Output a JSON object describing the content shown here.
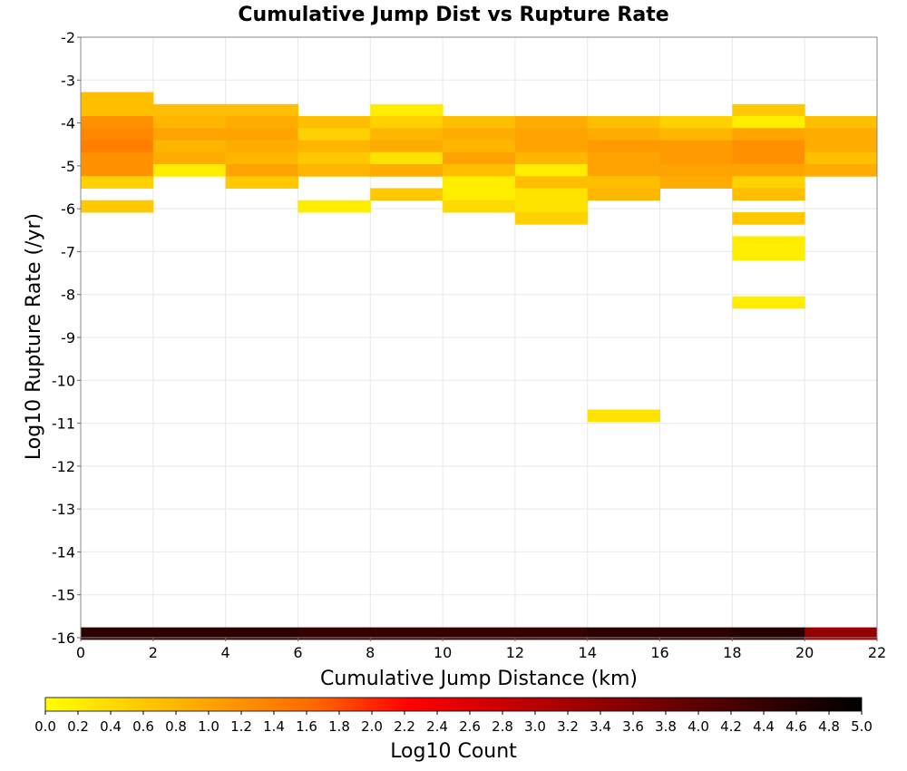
{
  "chart_data": {
    "type": "heatmap",
    "title": "Cumulative Jump Dist vs Rupture Rate",
    "xlabel": "Cumulative Jump Distance (km)",
    "ylabel": "Log10 Rupture Rate (/yr)",
    "xlim": [
      0,
      22
    ],
    "ylim": [
      -16,
      -2
    ],
    "x_ticks": [
      "0",
      "2",
      "4",
      "6",
      "8",
      "10",
      "12",
      "14",
      "16",
      "18",
      "20",
      "22"
    ],
    "y_ticks": [
      "-2",
      "-3",
      "-4",
      "-5",
      "-6",
      "-7",
      "-8",
      "-9",
      "-10",
      "-11",
      "-12",
      "-13",
      "-14",
      "-15",
      "-16"
    ],
    "x_bin_width": 2,
    "y_bin_height": 0.28,
    "grid": true,
    "colorbar": {
      "label": "Log10 Count",
      "min": 0,
      "max": 5,
      "ticks": [
        "0.0",
        "0.2",
        "0.4",
        "0.6",
        "0.8",
        "1.0",
        "1.2",
        "1.4",
        "1.6",
        "1.8",
        "2.0",
        "2.2",
        "2.4",
        "2.6",
        "2.8",
        "3.0",
        "3.2",
        "3.4",
        "3.6",
        "3.8",
        "4.0",
        "4.2",
        "4.4",
        "4.6",
        "4.8",
        "5.0"
      ],
      "colors": [
        "#ffff00",
        "#ffcc00",
        "#ff9900",
        "#ff6600",
        "#ff0000",
        "#cc0000",
        "#990000",
        "#660000",
        "#330000",
        "#000000"
      ]
    },
    "cells": [
      {
        "x": 1,
        "y": -3.42,
        "v": 0.7
      },
      {
        "x": 1,
        "y": -3.7,
        "v": 0.7
      },
      {
        "x": 1,
        "y": -3.98,
        "v": 1.2
      },
      {
        "x": 1,
        "y": -4.26,
        "v": 1.3
      },
      {
        "x": 1,
        "y": -4.54,
        "v": 1.4
      },
      {
        "x": 1,
        "y": -4.82,
        "v": 1.2
      },
      {
        "x": 1,
        "y": -5.1,
        "v": 1.2
      },
      {
        "x": 1,
        "y": -5.38,
        "v": 0.5
      },
      {
        "x": 1,
        "y": -5.94,
        "v": 0.6
      },
      {
        "x": 3,
        "y": -3.7,
        "v": 0.7
      },
      {
        "x": 3,
        "y": -3.98,
        "v": 0.8
      },
      {
        "x": 3,
        "y": -4.26,
        "v": 1.0
      },
      {
        "x": 3,
        "y": -4.54,
        "v": 0.8
      },
      {
        "x": 3,
        "y": -4.82,
        "v": 0.9
      },
      {
        "x": 3,
        "y": -5.1,
        "v": 0.2
      },
      {
        "x": 5,
        "y": -3.7,
        "v": 0.7
      },
      {
        "x": 5,
        "y": -3.98,
        "v": 0.9
      },
      {
        "x": 5,
        "y": -4.26,
        "v": 1.0
      },
      {
        "x": 5,
        "y": -4.54,
        "v": 0.9
      },
      {
        "x": 5,
        "y": -4.82,
        "v": 0.8
      },
      {
        "x": 5,
        "y": -5.1,
        "v": 1.0
      },
      {
        "x": 5,
        "y": -5.38,
        "v": 0.6
      },
      {
        "x": 7,
        "y": -3.98,
        "v": 0.7
      },
      {
        "x": 7,
        "y": -4.26,
        "v": 0.5
      },
      {
        "x": 7,
        "y": -4.54,
        "v": 0.8
      },
      {
        "x": 7,
        "y": -4.82,
        "v": 0.6
      },
      {
        "x": 7,
        "y": -5.1,
        "v": 0.8
      },
      {
        "x": 7,
        "y": -5.94,
        "v": 0.2
      },
      {
        "x": 9,
        "y": -3.7,
        "v": 0.2
      },
      {
        "x": 9,
        "y": -3.98,
        "v": 0.5
      },
      {
        "x": 9,
        "y": -4.26,
        "v": 0.8
      },
      {
        "x": 9,
        "y": -4.54,
        "v": 0.9
      },
      {
        "x": 9,
        "y": -4.82,
        "v": 0.3
      },
      {
        "x": 9,
        "y": -5.1,
        "v": 0.9
      },
      {
        "x": 9,
        "y": -5.66,
        "v": 0.6
      },
      {
        "x": 11,
        "y": -3.98,
        "v": 0.7
      },
      {
        "x": 11,
        "y": -4.26,
        "v": 0.9
      },
      {
        "x": 11,
        "y": -4.54,
        "v": 0.8
      },
      {
        "x": 11,
        "y": -4.82,
        "v": 1.0
      },
      {
        "x": 11,
        "y": -5.1,
        "v": 0.7
      },
      {
        "x": 11,
        "y": -5.38,
        "v": 0.2
      },
      {
        "x": 11,
        "y": -5.66,
        "v": 0.2
      },
      {
        "x": 11,
        "y": -5.94,
        "v": 0.4
      },
      {
        "x": 13,
        "y": -3.98,
        "v": 0.9
      },
      {
        "x": 13,
        "y": -4.26,
        "v": 1.0
      },
      {
        "x": 13,
        "y": -4.54,
        "v": 1.0
      },
      {
        "x": 13,
        "y": -4.82,
        "v": 0.8
      },
      {
        "x": 13,
        "y": -5.1,
        "v": 0.2
      },
      {
        "x": 13,
        "y": -5.38,
        "v": 0.7
      },
      {
        "x": 13,
        "y": -5.66,
        "v": 0.3
      },
      {
        "x": 13,
        "y": -5.94,
        "v": 0.3
      },
      {
        "x": 13,
        "y": -6.22,
        "v": 0.5
      },
      {
        "x": 15,
        "y": -3.98,
        "v": 0.7
      },
      {
        "x": 15,
        "y": -4.26,
        "v": 0.9
      },
      {
        "x": 15,
        "y": -4.54,
        "v": 1.1
      },
      {
        "x": 15,
        "y": -4.82,
        "v": 1.0
      },
      {
        "x": 15,
        "y": -5.1,
        "v": 1.0
      },
      {
        "x": 15,
        "y": -5.38,
        "v": 0.7
      },
      {
        "x": 15,
        "y": -5.66,
        "v": 0.8
      },
      {
        "x": 15,
        "y": -10.82,
        "v": 0.3
      },
      {
        "x": 17,
        "y": -3.98,
        "v": 0.5
      },
      {
        "x": 17,
        "y": -4.26,
        "v": 0.8
      },
      {
        "x": 17,
        "y": -4.54,
        "v": 1.1
      },
      {
        "x": 17,
        "y": -4.82,
        "v": 1.1
      },
      {
        "x": 17,
        "y": -5.1,
        "v": 1.0
      },
      {
        "x": 17,
        "y": -5.38,
        "v": 0.9
      },
      {
        "x": 19,
        "y": -3.7,
        "v": 0.6
      },
      {
        "x": 19,
        "y": -3.98,
        "v": 0.2
      },
      {
        "x": 19,
        "y": -4.26,
        "v": 1.0
      },
      {
        "x": 19,
        "y": -4.54,
        "v": 1.2
      },
      {
        "x": 19,
        "y": -4.82,
        "v": 1.2
      },
      {
        "x": 19,
        "y": -5.1,
        "v": 1.0
      },
      {
        "x": 19,
        "y": -5.38,
        "v": 0.5
      },
      {
        "x": 19,
        "y": -5.66,
        "v": 0.7
      },
      {
        "x": 19,
        "y": -6.22,
        "v": 0.6
      },
      {
        "x": 19,
        "y": -6.78,
        "v": 0.2
      },
      {
        "x": 19,
        "y": -7.06,
        "v": 0.2
      },
      {
        "x": 19,
        "y": -8.18,
        "v": 0.2
      },
      {
        "x": 21,
        "y": -3.98,
        "v": 0.7
      },
      {
        "x": 21,
        "y": -4.26,
        "v": 0.9
      },
      {
        "x": 21,
        "y": -4.54,
        "v": 0.9
      },
      {
        "x": 21,
        "y": -4.82,
        "v": 0.7
      },
      {
        "x": 21,
        "y": -5.1,
        "v": 0.9
      },
      {
        "x": 1,
        "y": -15.9,
        "v": 4.5
      },
      {
        "x": 3,
        "y": -15.9,
        "v": 4.5
      },
      {
        "x": 5,
        "y": -15.9,
        "v": 4.5
      },
      {
        "x": 7,
        "y": -15.9,
        "v": 4.4
      },
      {
        "x": 9,
        "y": -15.9,
        "v": 4.4
      },
      {
        "x": 11,
        "y": -15.9,
        "v": 4.4
      },
      {
        "x": 13,
        "y": -15.9,
        "v": 4.4
      },
      {
        "x": 15,
        "y": -15.9,
        "v": 4.5
      },
      {
        "x": 17,
        "y": -15.9,
        "v": 4.5
      },
      {
        "x": 19,
        "y": -15.9,
        "v": 4.6
      },
      {
        "x": 21,
        "y": -15.9,
        "v": 3.4
      }
    ]
  }
}
